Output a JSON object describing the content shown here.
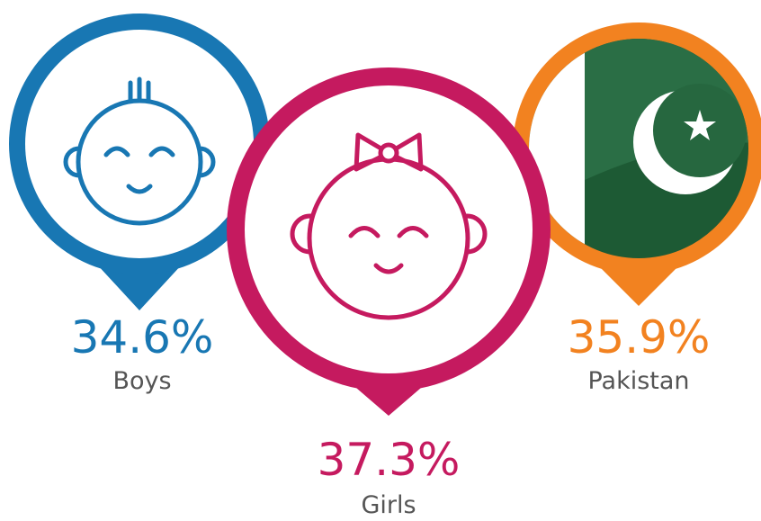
{
  "items": [
    {
      "value": "34.6%",
      "label": "Boys"
    },
    {
      "value": "37.3%",
      "label": "Girls"
    },
    {
      "value": "35.9%",
      "label": "Pakistan"
    }
  ]
}
